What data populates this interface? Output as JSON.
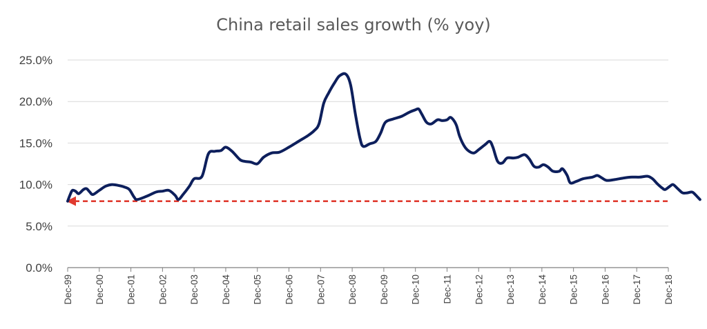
{
  "chart_data": {
    "type": "line",
    "title": "China retail sales growth (% yoy)",
    "xlabel": "",
    "ylabel": "",
    "ylim": [
      0,
      25
    ],
    "yticks": [
      "0.0%",
      "5.0%",
      "10.0%",
      "15.0%",
      "20.0%",
      "25.0%"
    ],
    "ytick_values": [
      0,
      5,
      10,
      15,
      20,
      25
    ],
    "categories": [
      "Dec-99",
      "Dec-00",
      "Dec-01",
      "Dec-02",
      "Dec-03",
      "Dec-04",
      "Dec-05",
      "Dec-06",
      "Dec-07",
      "Dec-08",
      "Dec-09",
      "Dec-10",
      "Dec-11",
      "Dec-12",
      "Dec-13",
      "Dec-14",
      "Dec-15",
      "Dec-16",
      "Dec-17",
      "Dec-18"
    ],
    "grid": true,
    "legend": "none",
    "series": [
      {
        "color": "#0d1f5c",
        "points": [
          [
            0.0,
            8.0
          ],
          [
            0.08,
            8.8
          ],
          [
            0.15,
            9.3
          ],
          [
            0.25,
            9.2
          ],
          [
            0.35,
            8.9
          ],
          [
            0.5,
            9.4
          ],
          [
            0.6,
            9.5
          ],
          [
            0.7,
            9.1
          ],
          [
            0.8,
            8.8
          ],
          [
            1.0,
            9.3
          ],
          [
            1.2,
            9.8
          ],
          [
            1.4,
            10.0
          ],
          [
            1.6,
            9.9
          ],
          [
            1.8,
            9.7
          ],
          [
            1.95,
            9.4
          ],
          [
            2.1,
            8.5
          ],
          [
            2.2,
            8.2
          ],
          [
            2.5,
            8.6
          ],
          [
            2.8,
            9.1
          ],
          [
            3.0,
            9.2
          ],
          [
            3.2,
            9.3
          ],
          [
            3.4,
            8.7
          ],
          [
            3.5,
            8.2
          ],
          [
            3.65,
            8.8
          ],
          [
            3.85,
            9.8
          ],
          [
            4.0,
            10.7
          ],
          [
            4.25,
            11.0
          ],
          [
            4.45,
            13.7
          ],
          [
            4.65,
            14.0
          ],
          [
            4.85,
            14.1
          ],
          [
            5.0,
            14.5
          ],
          [
            5.2,
            14.0
          ],
          [
            5.45,
            13.0
          ],
          [
            5.6,
            12.8
          ],
          [
            5.8,
            12.7
          ],
          [
            6.0,
            12.5
          ],
          [
            6.2,
            13.3
          ],
          [
            6.45,
            13.8
          ],
          [
            6.7,
            13.9
          ],
          [
            7.0,
            14.5
          ],
          [
            7.3,
            15.2
          ],
          [
            7.6,
            15.9
          ],
          [
            7.8,
            16.5
          ],
          [
            7.95,
            17.3
          ],
          [
            8.1,
            19.8
          ],
          [
            8.25,
            21.0
          ],
          [
            8.45,
            22.3
          ],
          [
            8.6,
            23.1
          ],
          [
            8.8,
            23.3
          ],
          [
            8.95,
            22.0
          ],
          [
            9.1,
            18.5
          ],
          [
            9.25,
            15.5
          ],
          [
            9.35,
            14.6
          ],
          [
            9.55,
            14.9
          ],
          [
            9.75,
            15.2
          ],
          [
            9.9,
            16.2
          ],
          [
            10.05,
            17.5
          ],
          [
            10.3,
            17.9
          ],
          [
            10.55,
            18.2
          ],
          [
            10.8,
            18.7
          ],
          [
            11.0,
            19.0
          ],
          [
            11.1,
            19.1
          ],
          [
            11.2,
            18.5
          ],
          [
            11.35,
            17.5
          ],
          [
            11.5,
            17.3
          ],
          [
            11.7,
            17.8
          ],
          [
            11.85,
            17.7
          ],
          [
            12.0,
            17.8
          ],
          [
            12.1,
            18.1
          ],
          [
            12.2,
            17.8
          ],
          [
            12.3,
            17.1
          ],
          [
            12.4,
            15.8
          ],
          [
            12.55,
            14.6
          ],
          [
            12.7,
            14.0
          ],
          [
            12.85,
            13.8
          ],
          [
            13.0,
            14.2
          ],
          [
            13.2,
            14.8
          ],
          [
            13.35,
            15.2
          ],
          [
            13.45,
            14.5
          ],
          [
            13.6,
            12.8
          ],
          [
            13.75,
            12.6
          ],
          [
            13.9,
            13.2
          ],
          [
            14.1,
            13.2
          ],
          [
            14.25,
            13.3
          ],
          [
            14.45,
            13.6
          ],
          [
            14.6,
            13.1
          ],
          [
            14.75,
            12.2
          ],
          [
            14.9,
            12.1
          ],
          [
            15.05,
            12.4
          ],
          [
            15.2,
            12.1
          ],
          [
            15.35,
            11.6
          ],
          [
            15.55,
            11.6
          ],
          [
            15.65,
            11.9
          ],
          [
            15.8,
            11.1
          ],
          [
            15.9,
            10.2
          ],
          [
            16.1,
            10.4
          ],
          [
            16.3,
            10.7
          ],
          [
            16.6,
            10.9
          ],
          [
            16.75,
            11.1
          ],
          [
            16.9,
            10.8
          ],
          [
            17.05,
            10.5
          ],
          [
            17.3,
            10.6
          ],
          [
            17.6,
            10.8
          ],
          [
            17.85,
            10.9
          ],
          [
            18.1,
            10.9
          ],
          [
            18.35,
            11.0
          ],
          [
            18.5,
            10.7
          ],
          [
            18.65,
            10.1
          ],
          [
            18.8,
            9.6
          ],
          [
            18.9,
            9.4
          ],
          [
            19.05,
            9.8
          ],
          [
            19.15,
            10.0
          ],
          [
            19.3,
            9.5
          ],
          [
            19.45,
            9.0
          ],
          [
            19.6,
            9.0
          ],
          [
            19.75,
            9.1
          ],
          [
            19.85,
            8.8
          ],
          [
            20.0,
            8.2
          ]
        ]
      }
    ],
    "reference_line": {
      "value": 8.0,
      "color": "#e03a2f",
      "style": "dashed",
      "arrow": "left"
    }
  }
}
